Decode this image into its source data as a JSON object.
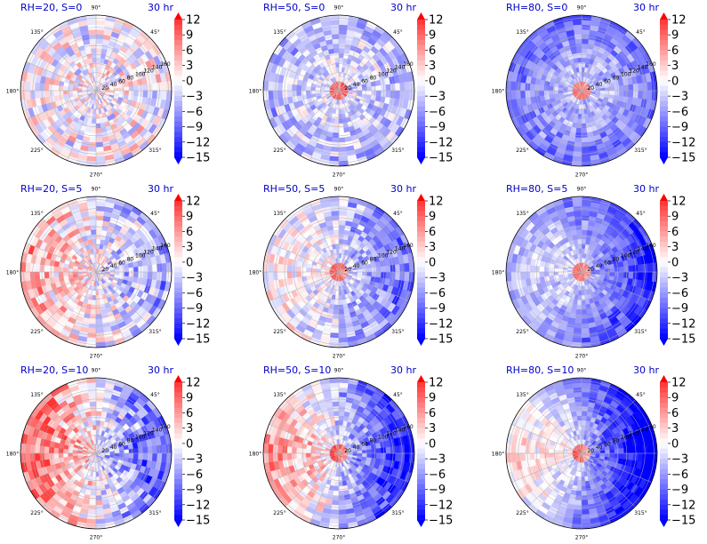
{
  "figure": {
    "time_label": "30 hr",
    "colormap": {
      "negative": "#0000ff",
      "zero": "#ffffff",
      "positive": "#ff0000"
    },
    "angle_tick_labels": [
      "0°",
      "45°",
      "90°",
      "135°",
      "180°",
      "225°",
      "270°",
      "315°"
    ],
    "radial_tick_labels": [
      "20",
      "40",
      "60",
      "80",
      "100",
      "120",
      "140",
      "160"
    ],
    "colorbar_ticks": [
      "12",
      "9",
      "6",
      "3",
      "0",
      "−3",
      "−6",
      "−9",
      "−12",
      "−15"
    ]
  },
  "chart_data": [
    {
      "type": "heatmap",
      "title": "RH=20, S=0",
      "time": "30 hr",
      "rh": 20,
      "s": 0,
      "theta_range_deg": [
        0,
        360
      ],
      "r_range": [
        0,
        160
      ],
      "value_range": [
        -15,
        12
      ],
      "grid": true
    },
    {
      "type": "heatmap",
      "title": "RH=50, S=0",
      "time": "30 hr",
      "rh": 50,
      "s": 0,
      "theta_range_deg": [
        0,
        360
      ],
      "r_range": [
        0,
        160
      ],
      "value_range": [
        -15,
        12
      ],
      "grid": true
    },
    {
      "type": "heatmap",
      "title": "RH=80, S=0",
      "time": "30 hr",
      "rh": 80,
      "s": 0,
      "theta_range_deg": [
        0,
        360
      ],
      "r_range": [
        0,
        160
      ],
      "value_range": [
        -15,
        12
      ],
      "grid": true
    },
    {
      "type": "heatmap",
      "title": "RH=20, S=5",
      "time": "30 hr",
      "rh": 20,
      "s": 5,
      "theta_range_deg": [
        0,
        360
      ],
      "r_range": [
        0,
        160
      ],
      "value_range": [
        -15,
        12
      ],
      "grid": true
    },
    {
      "type": "heatmap",
      "title": "RH=50, S=5",
      "time": "30 hr",
      "rh": 50,
      "s": 5,
      "theta_range_deg": [
        0,
        360
      ],
      "r_range": [
        0,
        160
      ],
      "value_range": [
        -15,
        12
      ],
      "grid": true
    },
    {
      "type": "heatmap",
      "title": "RH=80, S=5",
      "time": "30 hr",
      "rh": 80,
      "s": 5,
      "theta_range_deg": [
        0,
        360
      ],
      "r_range": [
        0,
        160
      ],
      "value_range": [
        -15,
        12
      ],
      "grid": true
    },
    {
      "type": "heatmap",
      "title": "RH=20, S=10",
      "time": "30 hr",
      "rh": 20,
      "s": 10,
      "theta_range_deg": [
        0,
        360
      ],
      "r_range": [
        0,
        160
      ],
      "value_range": [
        -15,
        12
      ],
      "grid": true
    },
    {
      "type": "heatmap",
      "title": "RH=50, S=10",
      "time": "30 hr",
      "rh": 50,
      "s": 10,
      "theta_range_deg": [
        0,
        360
      ],
      "r_range": [
        0,
        160
      ],
      "value_range": [
        -15,
        12
      ],
      "grid": true
    },
    {
      "type": "heatmap",
      "title": "RH=80, S=10",
      "time": "30 hr",
      "rh": 80,
      "s": 10,
      "theta_range_deg": [
        0,
        360
      ],
      "r_range": [
        0,
        160
      ],
      "value_range": [
        -15,
        12
      ],
      "grid": true
    }
  ]
}
